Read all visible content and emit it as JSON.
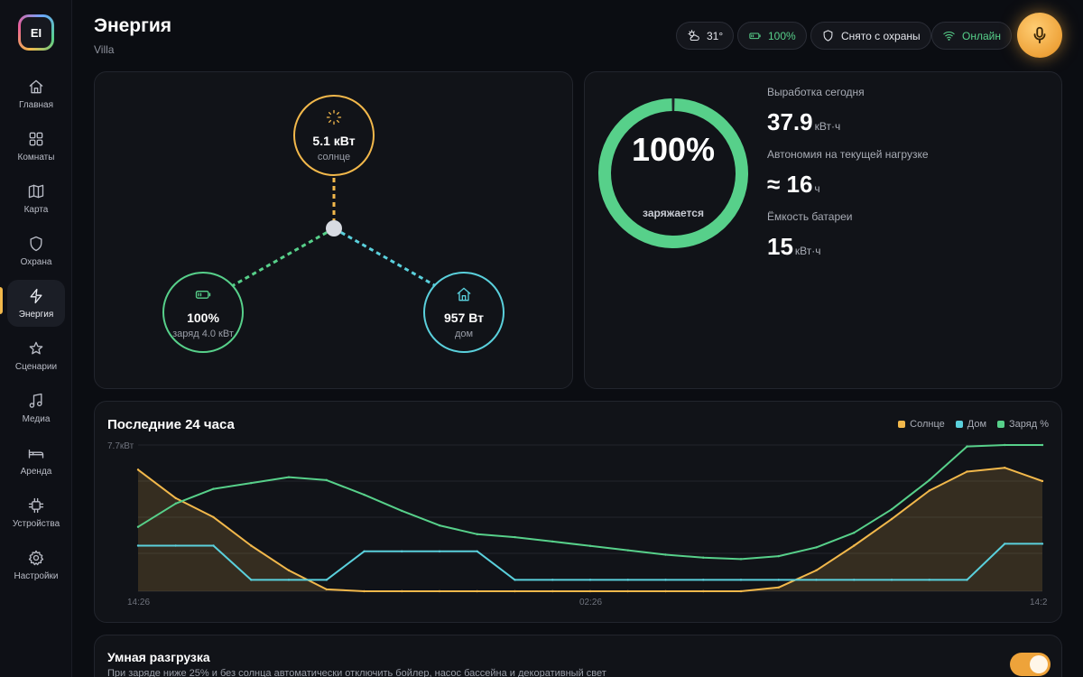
{
  "app": {
    "logo_text": "EI"
  },
  "sidebar": {
    "items": [
      {
        "label": "Главная",
        "icon": "home-icon"
      },
      {
        "label": "Комнаты",
        "icon": "grid-icon"
      },
      {
        "label": "Карта",
        "icon": "map-icon"
      },
      {
        "label": "Охрана",
        "icon": "shield-icon"
      },
      {
        "label": "Энергия",
        "icon": "bolt-icon",
        "active": true
      },
      {
        "label": "Сценарии",
        "icon": "star-icon"
      },
      {
        "label": "Медиа",
        "icon": "music-icon"
      },
      {
        "label": "Аренда",
        "icon": "bed-icon"
      },
      {
        "label": "Устройства",
        "icon": "chip-icon"
      },
      {
        "label": "Настройки",
        "icon": "gear-icon"
      }
    ]
  },
  "header": {
    "title": "Энергия",
    "subtitle": "Villa",
    "weather": "31°",
    "battery": "100%",
    "security": "Снято с охраны",
    "status": "Онлайн"
  },
  "flow": {
    "solar": {
      "value": "5.1 кВт",
      "caption": "солнце"
    },
    "battery": {
      "value": "100%",
      "caption": "заряд 4.0 кВт"
    },
    "home": {
      "value": "957 Вт",
      "caption": "дом"
    }
  },
  "battery_card": {
    "percent": "100%",
    "percent_level": 1.0,
    "state": "заряжается",
    "produced_label": "Выработка сегодня",
    "produced_value": "37.9",
    "produced_unit": "кВт·ч",
    "autonomy_label": "Автономия на текущей нагрузке",
    "autonomy_value": "≈ 16",
    "autonomy_unit": "ч",
    "capacity_label": "Ёмкость батареи",
    "capacity_value": "15",
    "capacity_unit": "кВт·ч"
  },
  "chart": {
    "title": "Последние 24 часа",
    "legend": [
      "Солнце",
      "Дом",
      "Заряд %"
    ],
    "y_max_label": "7.7кВт",
    "x_labels": [
      "14:26",
      "02:26",
      "14:2"
    ]
  },
  "chart_data": {
    "type": "line",
    "title": "Последние 24 часа",
    "ylim": [
      0,
      7.7
    ],
    "y_unit": "кВт",
    "x": [
      0,
      1,
      2,
      3,
      4,
      5,
      6,
      7,
      8,
      9,
      10,
      11,
      12,
      13,
      14,
      15,
      16,
      17,
      18,
      19,
      20,
      21,
      22,
      23,
      24
    ],
    "x_tick_labels": [
      "14:26",
      "02:26",
      "14:2"
    ],
    "series": [
      {
        "name": "Солнце",
        "color": "#f2b84b",
        "values": [
          6.4,
          4.9,
          3.9,
          2.4,
          1.1,
          0.1,
          0.0,
          0.0,
          0.0,
          0.0,
          0.0,
          0.0,
          0.0,
          0.0,
          0.0,
          0.0,
          0.0,
          0.2,
          1.1,
          2.4,
          3.8,
          5.3,
          6.3,
          6.5,
          5.8
        ]
      },
      {
        "name": "Дом",
        "color": "#5ad0dc",
        "values": [
          2.4,
          2.4,
          2.4,
          0.6,
          0.6,
          0.6,
          2.1,
          2.1,
          2.1,
          2.1,
          0.6,
          0.6,
          0.6,
          0.6,
          0.6,
          0.6,
          0.6,
          0.6,
          0.6,
          0.6,
          0.6,
          0.6,
          0.6,
          2.5,
          2.5
        ]
      },
      {
        "name": "Заряд %",
        "color": "#57d08a",
        "values": [
          44,
          60,
          70,
          74,
          78,
          76,
          66,
          55,
          45,
          39,
          37,
          34,
          31,
          28,
          25,
          23,
          22,
          24,
          30,
          40,
          56,
          76,
          99,
          100,
          100
        ]
      }
    ]
  },
  "smart": {
    "title": "Умная разгрузка",
    "description": "При заряде ниже 25% и без солнца автоматически отключить бойлер, насос бассейна и декоративный свет",
    "enabled": true
  },
  "colors": {
    "solar": "#f2b84b",
    "home": "#5ad0dc",
    "battery": "#57d08a",
    "accent": "#eea33a"
  }
}
